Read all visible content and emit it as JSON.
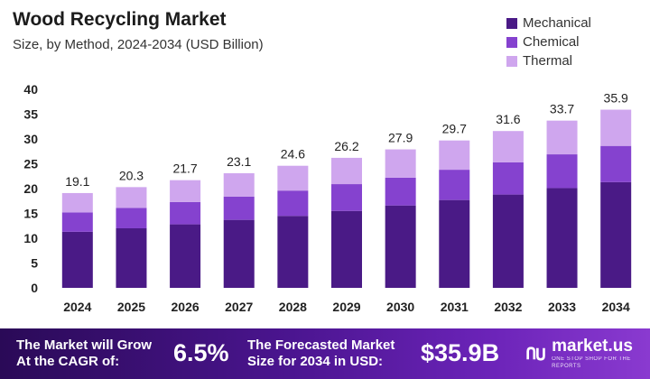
{
  "header": {
    "title": "Wood Recycling Market",
    "subtitle": "Size, by Method, 2024-2034 (USD Billion)"
  },
  "legend": {
    "items": [
      {
        "label": "Mechanical",
        "color": "#4a1a86"
      },
      {
        "label": "Chemical",
        "color": "#8542cf"
      },
      {
        "label": "Thermal",
        "color": "#cfa6ee"
      }
    ],
    "placement": "top-right"
  },
  "chart_data": {
    "type": "bar",
    "stacked": true,
    "categories": [
      "2024",
      "2025",
      "2026",
      "2027",
      "2028",
      "2029",
      "2030",
      "2031",
      "2032",
      "2033",
      "2034"
    ],
    "series": [
      {
        "name": "Mechanical",
        "values": [
          11.3,
          12.0,
          12.8,
          13.7,
          14.5,
          15.5,
          16.6,
          17.7,
          18.8,
          20.1,
          21.3
        ]
      },
      {
        "name": "Chemical",
        "values": [
          3.9,
          4.1,
          4.5,
          4.7,
          5.1,
          5.4,
          5.6,
          6.1,
          6.5,
          6.8,
          7.3
        ]
      },
      {
        "name": "Thermal",
        "values": [
          3.9,
          4.2,
          4.4,
          4.7,
          5.0,
          5.3,
          5.7,
          5.9,
          6.3,
          6.8,
          7.3
        ]
      }
    ],
    "totals": [
      "19.1",
      "20.3",
      "21.7",
      "23.1",
      "24.6",
      "26.2",
      "27.9",
      "29.7",
      "31.6",
      "33.7",
      "35.9"
    ],
    "y_ticks": [
      "0",
      "5",
      "10",
      "15",
      "20",
      "25",
      "30",
      "35",
      "40"
    ],
    "ylim": [
      0,
      40
    ],
    "grid": false,
    "title": "Wood Recycling Market",
    "xlabel": "",
    "ylabel": ""
  },
  "footer": {
    "cagr_text_line1": "The Market will Grow",
    "cagr_text_line2": "At the CAGR of:",
    "cagr_value": "6.5%",
    "forecast_text_line1": "The Forecasted Market",
    "forecast_text_line2": "Size for 2034 in USD:",
    "forecast_value": "$35.9B",
    "brand_name": "market.us",
    "brand_tagline": "ONE STOP SHOP FOR THE REPORTS",
    "brand_icon": "market-us-logo-icon"
  }
}
